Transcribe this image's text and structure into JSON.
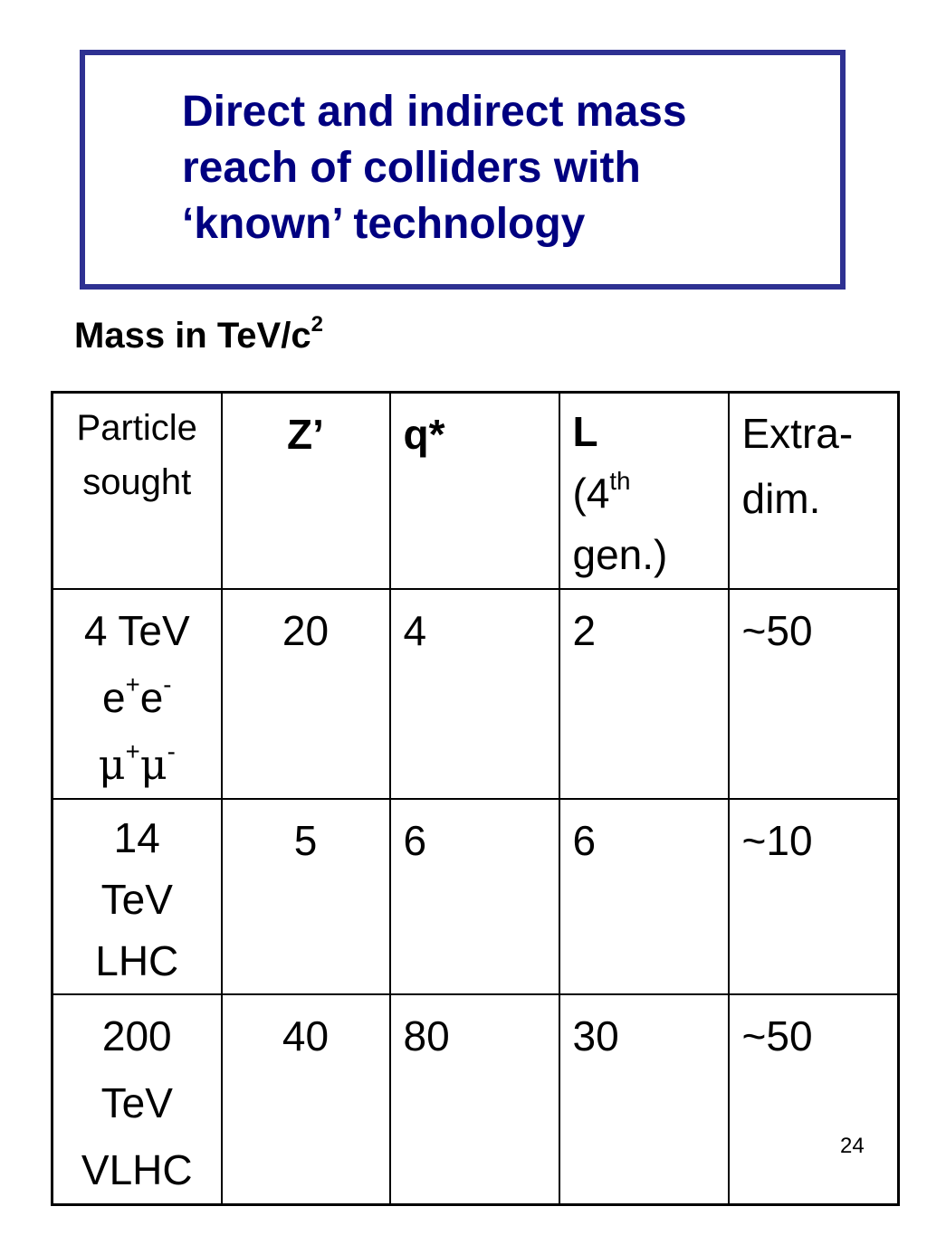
{
  "slide": {
    "title_line1": "Direct and indirect mass",
    "title_line2": "reach of colliders with",
    "title_line3": "‘known’ technology",
    "subtitle_text": "Mass in TeV/c",
    "subtitle_sup": "2",
    "page_number": "24",
    "title_color": "#000080",
    "border_color": "#2e3192"
  },
  "table": {
    "header": {
      "particle_line1": "Particle",
      "particle_line2": "sought",
      "z_prime": "Z’",
      "q_star": "q*",
      "l_label": "L",
      "l_gen_prefix": "(4",
      "l_gen_sup": "th",
      "l_gen_suffix": "gen.)",
      "extra_line1": "Extra-",
      "extra_line2": "dim."
    },
    "rows": [
      {
        "label_line1": "4 TeV",
        "label_line2_a": "e",
        "label_line2_a_sup": "+",
        "label_line2_b": "e",
        "label_line2_b_sup": "-",
        "label_line3_a": "μ",
        "label_line3_a_sup": "+",
        "label_line3_b": "μ",
        "label_line3_b_sup": "-",
        "z_prime": "20",
        "q_star": "4",
        "l": "2",
        "extra": "~50"
      },
      {
        "label_line1": "14",
        "label_line2": "TeV",
        "label_line3": "LHC",
        "z_prime": "5",
        "q_star": "6",
        "l": "6",
        "extra": "~10"
      },
      {
        "label_line1": "200",
        "label_line2": "TeV",
        "label_line3": "VLHC",
        "z_prime": "40",
        "q_star": "80",
        "l": "30",
        "extra": "~50"
      }
    ]
  }
}
